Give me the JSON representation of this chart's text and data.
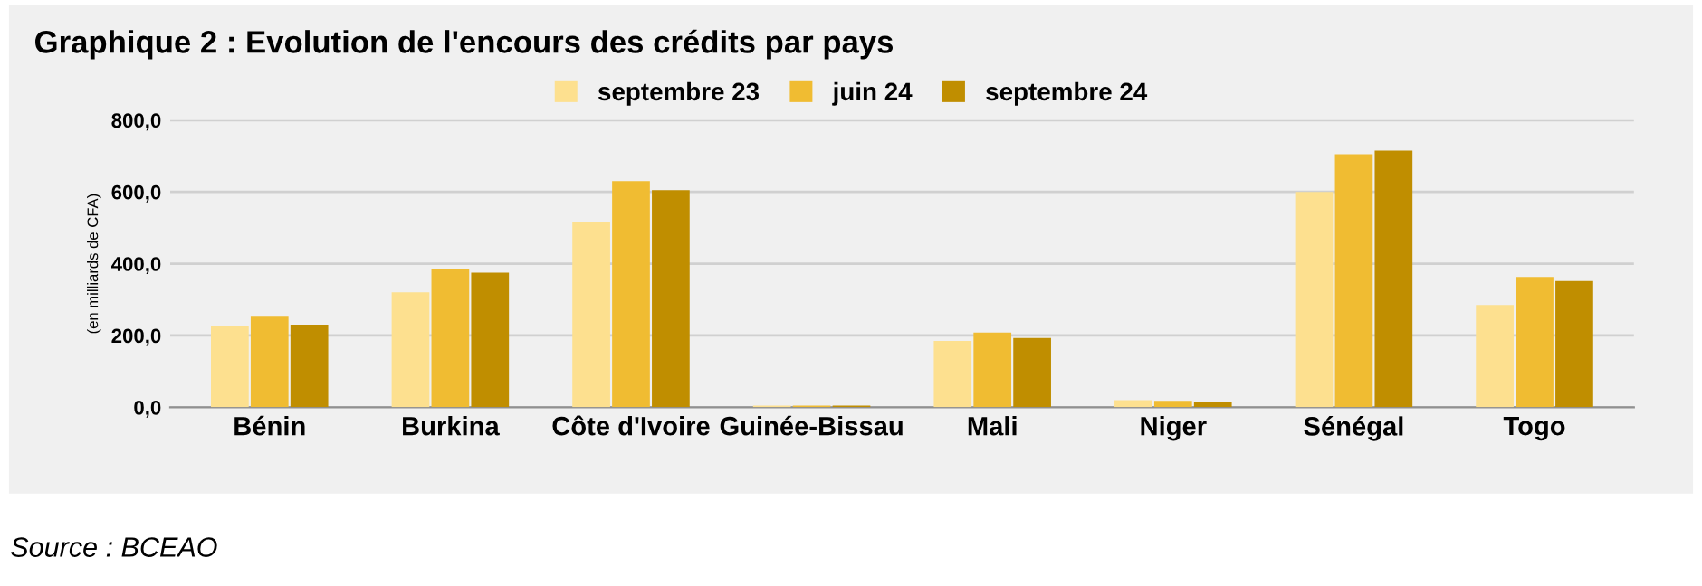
{
  "chart_data": {
    "type": "bar",
    "title": "Graphique 2 : Evolution de l'encours des crédits par pays",
    "ylabel": "(en milliards de CFA)",
    "categories": [
      "Bénin",
      "Burkina",
      "Côte d'Ivoire",
      "Guinée-Bissau",
      "Mali",
      "Niger",
      "Sénégal",
      "Togo"
    ],
    "series": [
      {
        "name": "septembre 23",
        "color": "#fde08f",
        "values": [
          225,
          320,
          515,
          5,
          185,
          20,
          600,
          285
        ]
      },
      {
        "name": "juin 24",
        "color": "#f0bc32",
        "values": [
          255,
          385,
          630,
          5,
          208,
          18,
          705,
          363
        ]
      },
      {
        "name": "septembre 24",
        "color": "#c08e00",
        "values": [
          230,
          375,
          605,
          5,
          193,
          15,
          715,
          352
        ]
      }
    ],
    "ylim": [
      0,
      800
    ],
    "yticks": [
      {
        "value": 0,
        "label": "0,0"
      },
      {
        "value": 200,
        "label": "200,0"
      },
      {
        "value": 400,
        "label": "400,0"
      },
      {
        "value": 600,
        "label": "600,0"
      },
      {
        "value": 800,
        "label": "800,0"
      }
    ],
    "grid": "y",
    "legend": "top",
    "annotations": [
      "Source : BCEAO"
    ]
  }
}
